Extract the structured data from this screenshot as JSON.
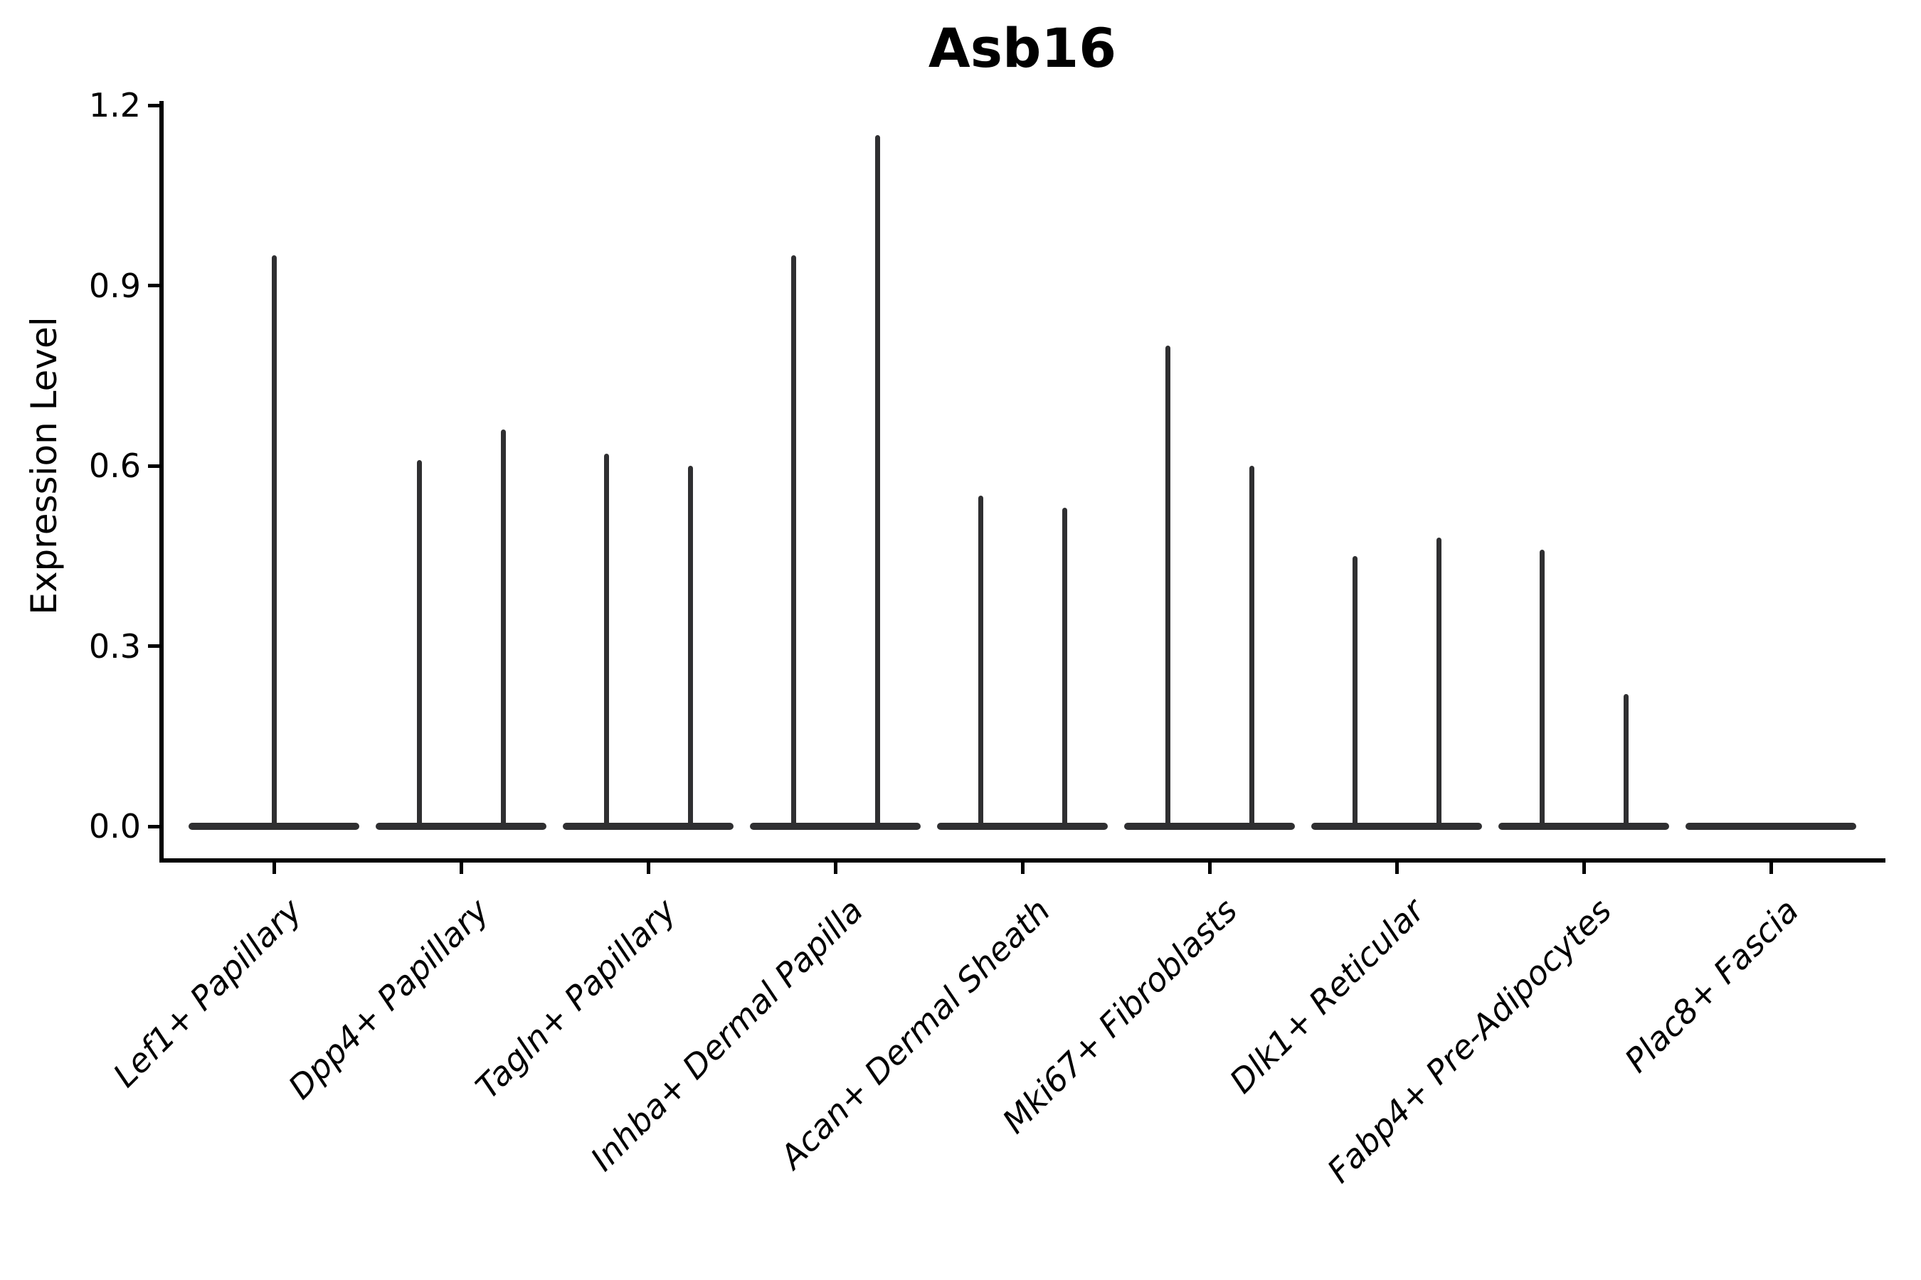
{
  "chart_data": {
    "type": "violin",
    "title": "Asb16",
    "ylabel": "Expression Level",
    "xlabel": "",
    "ylim": [
      -0.06,
      1.21
    ],
    "yticks": [
      0.0,
      0.3,
      0.6,
      0.9,
      1.2
    ],
    "ytick_labels": [
      "0.0",
      "0.3",
      "0.6",
      "0.9",
      "1.2"
    ],
    "grid": false,
    "legend": false,
    "colors": {
      "violin": "#2f2f31",
      "axis": "#000000",
      "text": "#000000",
      "background": "#ffffff"
    },
    "categories": [
      "Lef1+ Papillary",
      "Dpp4+ Papillary",
      "Tagln+ Papillary",
      "Inhba+ Dermal Papilla",
      "Acan+ Dermal Sheath",
      "Mki67+ Fibroblasts",
      "Dlk1+ Reticular",
      "Fabp4+ Pre-Adipocytes",
      "Plac8+ Fascia"
    ],
    "violins": [
      {
        "category": "Lef1+ Papillary",
        "zero_mass": true,
        "spikes": [
          {
            "position": "center",
            "max": 0.95
          }
        ]
      },
      {
        "category": "Dpp4+ Papillary",
        "zero_mass": true,
        "spikes": [
          {
            "position": "left",
            "max": 0.61
          },
          {
            "position": "right",
            "max": 0.66
          }
        ]
      },
      {
        "category": "Tagln+ Papillary",
        "zero_mass": true,
        "spikes": [
          {
            "position": "left",
            "max": 0.62
          },
          {
            "position": "right",
            "max": 0.6
          }
        ]
      },
      {
        "category": "Inhba+ Dermal Papilla",
        "zero_mass": true,
        "spikes": [
          {
            "position": "left",
            "max": 0.95
          },
          {
            "position": "right",
            "max": 1.15
          }
        ]
      },
      {
        "category": "Acan+ Dermal Sheath",
        "zero_mass": true,
        "spikes": [
          {
            "position": "left",
            "max": 0.55
          },
          {
            "position": "right",
            "max": 0.53
          }
        ]
      },
      {
        "category": "Mki67+ Fibroblasts",
        "zero_mass": true,
        "spikes": [
          {
            "position": "left",
            "max": 0.8
          },
          {
            "position": "right",
            "max": 0.6
          }
        ]
      },
      {
        "category": "Dlk1+ Reticular",
        "zero_mass": true,
        "spikes": [
          {
            "position": "left",
            "max": 0.45
          },
          {
            "position": "right",
            "max": 0.48
          }
        ]
      },
      {
        "category": "Fabp4+ Pre-Adipocytes",
        "zero_mass": true,
        "spikes": [
          {
            "position": "left",
            "max": 0.46
          },
          {
            "position": "right",
            "max": 0.22
          }
        ]
      },
      {
        "category": "Plac8+ Fascia",
        "zero_mass": true,
        "spikes": []
      }
    ]
  }
}
